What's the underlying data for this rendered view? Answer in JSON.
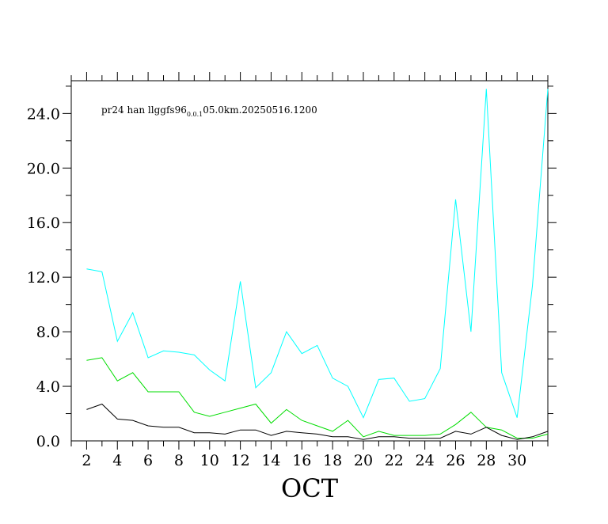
{
  "chart_data": {
    "type": "line",
    "annotation": {
      "prefix": "pr24 han llggfs96",
      "subscript": "0.0.1",
      "suffix": "05.0km.20250516.1200"
    },
    "xlabel": "OCT",
    "xlim": [
      1,
      32
    ],
    "ylim": [
      0,
      26.4
    ],
    "x_tick_values": [
      2,
      4,
      6,
      8,
      10,
      12,
      14,
      16,
      18,
      20,
      22,
      24,
      26,
      28,
      30
    ],
    "x_tick_labels": [
      "2",
      "4",
      "6",
      "8",
      "10",
      "12",
      "14",
      "16",
      "18",
      "20",
      "22",
      "24",
      "26",
      "28",
      "30"
    ],
    "y_tick_values": [
      0,
      4,
      8,
      12,
      16,
      20,
      24
    ],
    "y_tick_labels": [
      "0.0",
      "4.0",
      "8.0",
      "12.0",
      "16.0",
      "20.0",
      "24.0"
    ],
    "grid": false,
    "x": [
      2,
      3,
      4,
      5,
      6,
      7,
      8,
      9,
      10,
      11,
      12,
      13,
      14,
      15,
      16,
      17,
      18,
      19,
      20,
      21,
      22,
      23,
      24,
      25,
      26,
      27,
      28,
      29,
      30,
      31,
      32
    ],
    "series": [
      {
        "color": "#00ffff",
        "values": [
          12.6,
          12.4,
          7.3,
          9.4,
          6.1,
          6.6,
          6.5,
          6.3,
          5.2,
          4.4,
          11.7,
          3.9,
          5.0,
          8.0,
          6.4,
          7.0,
          4.6,
          4.0,
          1.7,
          4.5,
          4.6,
          2.9,
          3.1,
          5.3,
          17.7,
          8.0,
          25.8,
          5.0,
          1.7,
          11.4,
          25.8
        ]
      },
      {
        "color": "#00dd00",
        "values": [
          5.9,
          6.1,
          4.4,
          5.0,
          3.6,
          3.6,
          3.6,
          2.1,
          1.8,
          2.1,
          2.4,
          2.7,
          1.3,
          2.3,
          1.5,
          1.1,
          0.7,
          1.5,
          0.3,
          0.7,
          0.4,
          0.4,
          0.4,
          0.5,
          1.2,
          2.1,
          1.0,
          0.8,
          0.2,
          0.2,
          0.5
        ]
      },
      {
        "color": "#000000",
        "values": [
          2.3,
          2.7,
          1.6,
          1.5,
          1.1,
          1.0,
          1.0,
          0.6,
          0.6,
          0.5,
          0.8,
          0.8,
          0.4,
          0.7,
          0.6,
          0.5,
          0.3,
          0.3,
          0.1,
          0.3,
          0.3,
          0.2,
          0.2,
          0.2,
          0.7,
          0.5,
          1.0,
          0.4,
          0.1,
          0.3,
          0.7
        ]
      }
    ]
  }
}
